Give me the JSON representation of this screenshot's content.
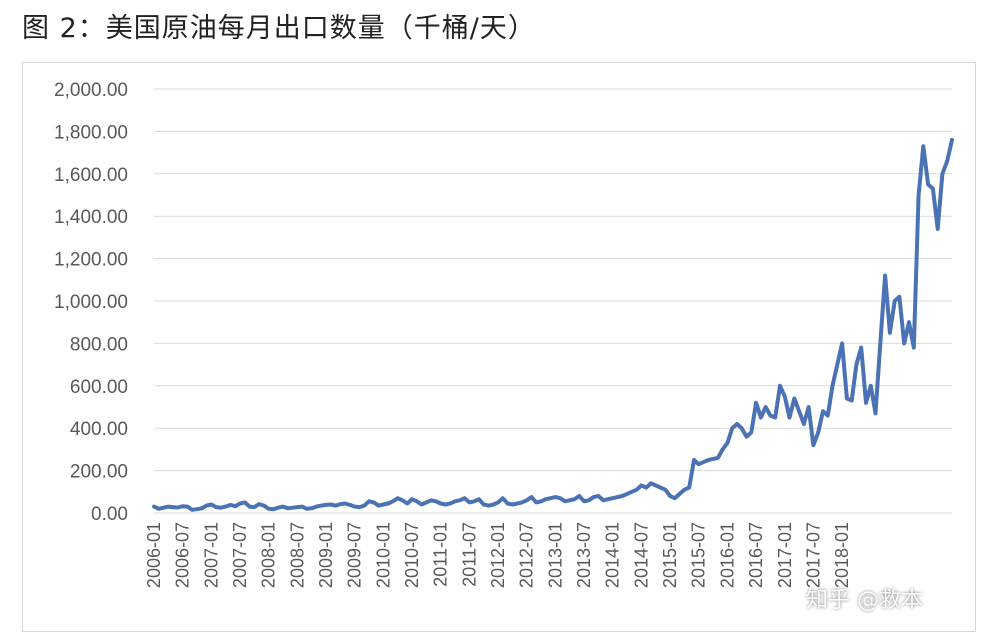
{
  "title": "图 2：美国原油每月出口数量（千桶/天）",
  "watermark": "知乎 @救本",
  "chart_data": {
    "type": "line",
    "title": "图 2：美国原油每月出口数量（千桶/天）",
    "xlabel": "",
    "ylabel": "",
    "ylim": [
      0,
      2000
    ],
    "yticks": [
      "0.00",
      "200.00",
      "400.00",
      "600.00",
      "800.00",
      "1,000.00",
      "1,200.00",
      "1,400.00",
      "1,600.00",
      "1,800.00",
      "2,000.00"
    ],
    "xticks": [
      "2006-01",
      "2006-07",
      "2007-01",
      "2007-07",
      "2008-01",
      "2008-07",
      "2009-01",
      "2009-07",
      "2010-01",
      "2010-07",
      "2011-01",
      "2011-07",
      "2012-01",
      "2012-07",
      "2013-01",
      "2013-07",
      "2014-01",
      "2014-07",
      "2015-01",
      "2015-07",
      "2016-01",
      "2016-07",
      "2017-01",
      "2017-07",
      "2018-01"
    ],
    "grid": true,
    "legend": "none",
    "line_color": "#4a72b4",
    "series": [
      {
        "values": [
          30,
          20,
          25,
          30,
          28,
          26,
          32,
          30,
          15,
          18,
          22,
          35,
          40,
          28,
          25,
          30,
          38,
          32,
          45,
          50,
          30,
          28,
          42,
          35,
          20,
          18,
          25,
          30,
          22,
          25,
          28,
          30,
          20,
          22,
          30,
          35,
          38,
          40,
          35,
          42,
          45,
          38,
          30,
          28,
          35,
          55,
          50,
          35,
          40,
          45,
          55,
          70,
          60,
          45,
          65,
          55,
          40,
          50,
          60,
          55,
          45,
          40,
          45,
          55,
          60,
          70,
          50,
          55,
          65,
          40,
          35,
          40,
          50,
          70,
          45,
          40,
          45,
          50,
          60,
          75,
          50,
          55,
          65,
          70,
          75,
          70,
          55,
          60,
          65,
          80,
          55,
          60,
          75,
          80,
          60,
          65,
          70,
          75,
          80,
          90,
          100,
          110,
          130,
          120,
          140,
          130,
          120,
          110,
          80,
          70,
          90,
          110,
          120,
          250,
          230,
          240,
          250,
          255,
          260,
          300,
          330,
          400,
          420,
          400,
          360,
          380,
          520,
          450,
          500,
          460,
          450,
          600,
          550,
          450,
          540,
          480,
          420,
          500,
          320,
          380,
          480,
          460,
          600,
          700,
          800,
          540,
          530,
          700,
          780,
          520,
          600,
          470,
          800,
          1120,
          850,
          1000,
          1020,
          800,
          900,
          780,
          1500,
          1730,
          1550,
          1530,
          1340,
          1600,
          1660,
          1760
        ]
      }
    ]
  }
}
